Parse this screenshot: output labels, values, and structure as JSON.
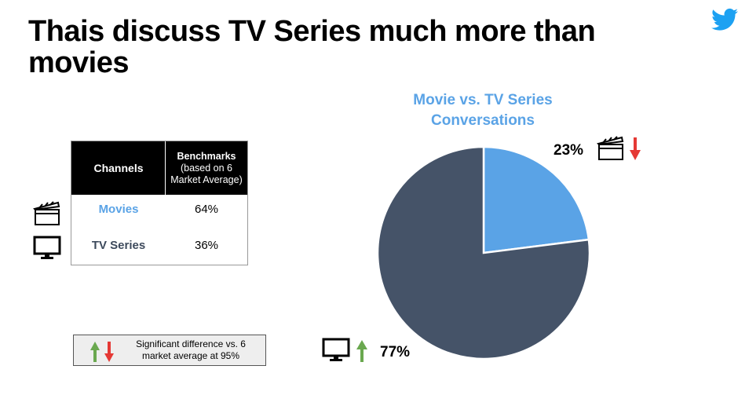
{
  "slide": {
    "title": "Thais discuss TV Series much more than movies"
  },
  "benchmark_table": {
    "header_channels": "Channels",
    "header_benchmarks_bold": "Benchmarks",
    "header_benchmarks_rest": "(based on 6 Market Average)",
    "rows": [
      {
        "label": "Movies",
        "value": "64%",
        "label_color": "#5aa3e6",
        "icon": "clapperboard-icon"
      },
      {
        "label": "TV Series",
        "value": "36%",
        "label_color": "#3d4a5c",
        "icon": "tv-monitor-icon"
      }
    ]
  },
  "legend": {
    "text": "Significant difference vs. 6 market average at 95%",
    "up_color": "#6aa84f",
    "down_color": "#e53935"
  },
  "chart_data": {
    "type": "pie",
    "title": "Movie vs. TV Series Conversations",
    "categories": [
      "Movie",
      "TV Series"
    ],
    "values": [
      23,
      77
    ],
    "labels": [
      "23%",
      "77%"
    ],
    "colors": [
      "#5aa3e6",
      "#455368"
    ],
    "significance": [
      "down",
      "up"
    ]
  },
  "icons": {
    "brand": "twitter-bird-icon",
    "up_arrow": "up-arrow-icon",
    "down_arrow": "down-arrow-icon"
  },
  "colors": {
    "accent_blue": "#5aa3e6",
    "pie_dark": "#455368",
    "twitter_blue": "#1da1f2"
  }
}
